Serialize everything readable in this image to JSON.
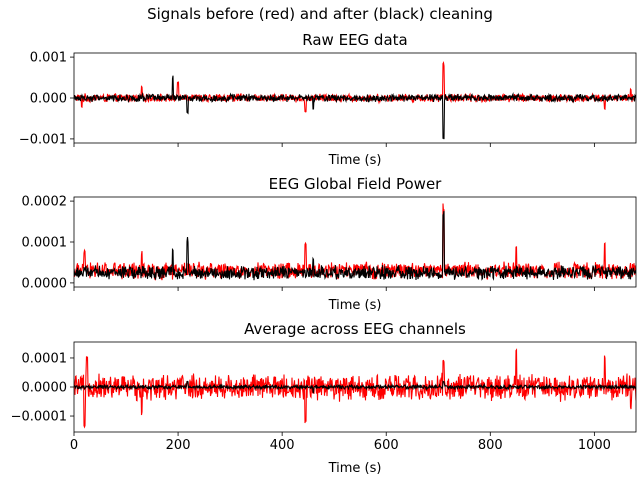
{
  "figure": {
    "suptitle": "Signals before (red) and after (black) cleaning",
    "colors": {
      "before": "#ff0000",
      "after": "#000000"
    }
  },
  "chart_data": [
    {
      "type": "line",
      "title": "Raw EEG data",
      "xlabel": "Time (s)",
      "ylabel": "",
      "xlim": [
        0,
        1080
      ],
      "ylim": [
        -0.0011,
        0.0011
      ],
      "yticks": [
        -0.001,
        0.0,
        0.001
      ],
      "ytick_labels": [
        "−0.001",
        "0.000",
        "0.001"
      ],
      "xticks": [
        0,
        200,
        400,
        600,
        800,
        1000
      ],
      "xtick_labels": [],
      "series": [
        {
          "color": "#ff0000",
          "baseline": 0.0,
          "noise": 9e-05,
          "spikes": [
            [
              15,
              -0.00025
            ],
            [
              130,
              0.0003
            ],
            [
              200,
              0.0004
            ],
            [
              445,
              -0.00035
            ],
            [
              710,
              0.0009
            ],
            [
              1020,
              -0.0003
            ],
            [
              1070,
              0.00022
            ]
          ]
        },
        {
          "color": "#000000",
          "baseline": 0.0,
          "noise": 8e-05,
          "spikes": [
            [
              190,
              0.00055
            ],
            [
              218,
              0.00062
            ],
            [
              218,
              -0.0004
            ],
            [
              710,
              0.00095
            ],
            [
              710,
              -0.00105
            ],
            [
              460,
              -0.0003
            ]
          ]
        }
      ]
    },
    {
      "type": "line",
      "title": "EEG Global Field Power",
      "xlabel": "Time (s)",
      "ylabel": "",
      "xlim": [
        0,
        1080
      ],
      "ylim": [
        -1e-05,
        0.00021
      ],
      "yticks": [
        0.0,
        0.0001,
        0.0002
      ],
      "ytick_labels": [
        "0.0000",
        "0.0001",
        "0.0002"
      ],
      "xticks": [
        0,
        200,
        400,
        600,
        800,
        1000
      ],
      "xtick_labels": [],
      "series": [
        {
          "color": "#ff0000",
          "baseline": 3e-05,
          "noise": 1.8e-05,
          "spikes": [
            [
              20,
              8e-05
            ],
            [
              130,
              8e-05
            ],
            [
              445,
              0.000105
            ],
            [
              710,
              0.000195
            ],
            [
              850,
              9.5e-05
            ],
            [
              1020,
              0.000105
            ]
          ]
        },
        {
          "color": "#000000",
          "baseline": 2.5e-05,
          "noise": 1.5e-05,
          "spikes": [
            [
              190,
              9e-05
            ],
            [
              218,
              0.000113
            ],
            [
              710,
              0.000185
            ],
            [
              460,
              6e-05
            ]
          ]
        }
      ]
    },
    {
      "type": "line",
      "title": "Average across EEG channels",
      "xlabel": "Time (s)",
      "ylabel": "",
      "xlim": [
        0,
        1080
      ],
      "ylim": [
        -0.000155,
        0.000155
      ],
      "yticks": [
        -0.0001,
        0.0,
        0.0001
      ],
      "ytick_labels": [
        "−0.0001",
        "0.0000",
        "0.0001"
      ],
      "xticks": [
        0,
        200,
        400,
        600,
        800,
        1000
      ],
      "xtick_labels": [
        "0",
        "200",
        "400",
        "600",
        "800",
        "1000"
      ],
      "series": [
        {
          "color": "#ff0000",
          "baseline": 0.0,
          "noise": 4e-05,
          "spikes": [
            [
              20,
              -0.00014
            ],
            [
              25,
              0.00011
            ],
            [
              130,
              -0.0001
            ],
            [
              445,
              -0.000125
            ],
            [
              710,
              9.5e-05
            ],
            [
              850,
              0.000135
            ],
            [
              1020,
              0.000115
            ],
            [
              1070,
              -8e-05
            ]
          ]
        },
        {
          "color": "#000000",
          "baseline": 0.0,
          "noise": 6e-06,
          "spikes": [
            [
              218,
              2e-05
            ],
            [
              460,
              -2e-05
            ],
            [
              710,
              2e-05
            ]
          ]
        }
      ]
    }
  ]
}
